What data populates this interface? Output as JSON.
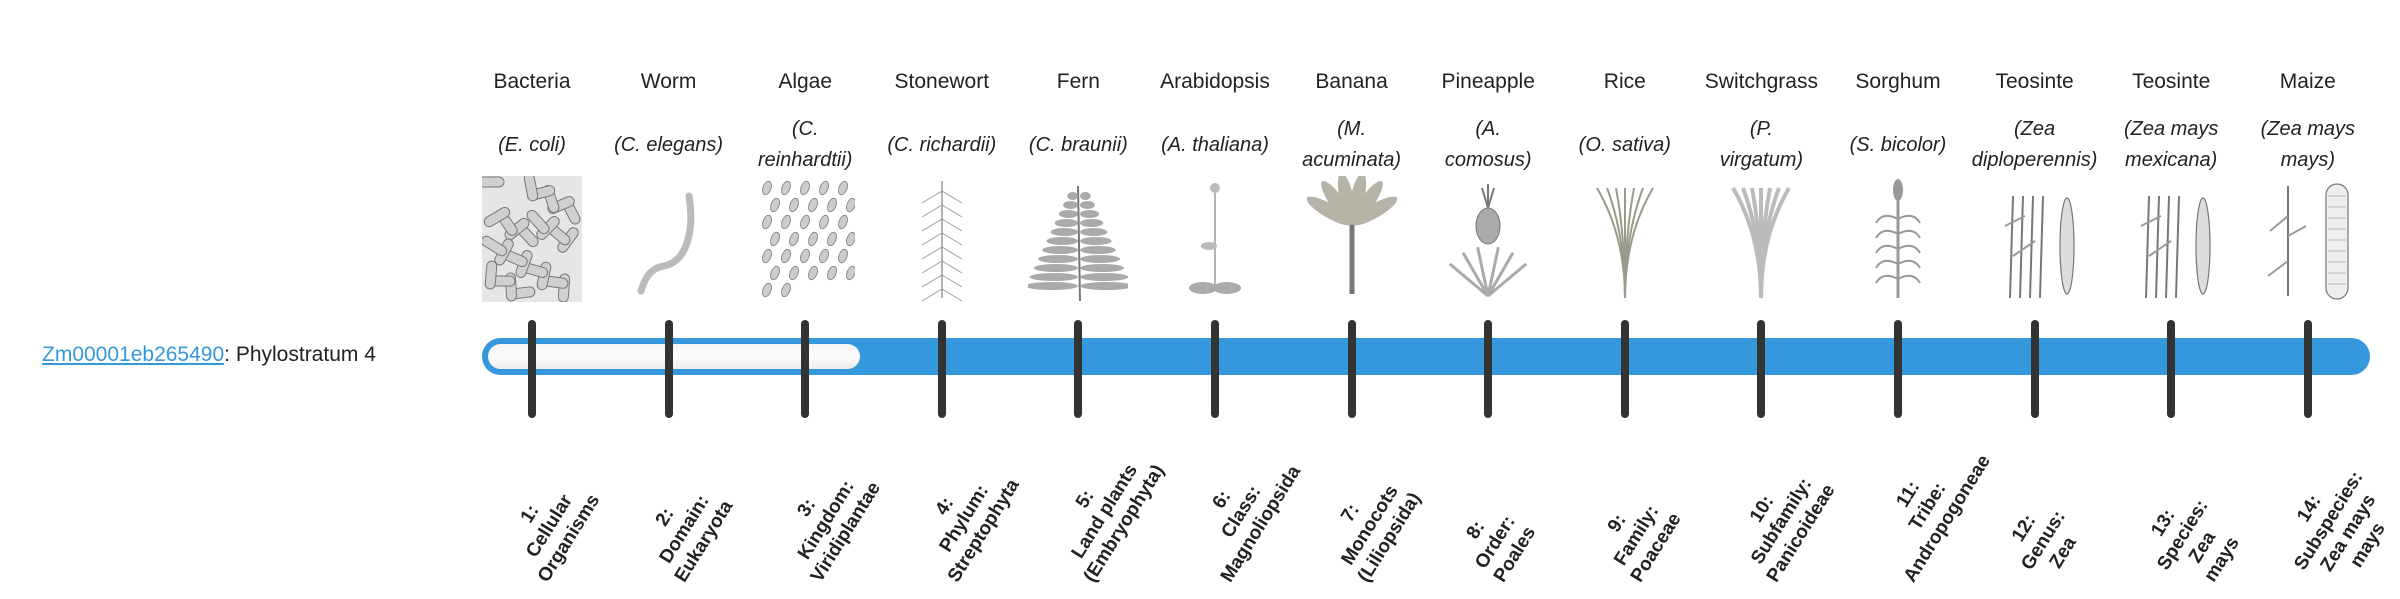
{
  "gene": {
    "id": "Zm00001eb265490",
    "suffix": ": Phylostratum 4",
    "phylostratum": 4
  },
  "bar": {
    "fill_color": "#3598dc",
    "empty_color": "#f5f5f5",
    "total_levels": 14
  },
  "columns": [
    {
      "common": "Bacteria",
      "sci": "(E. coli)",
      "icon": "bacteria-illustration",
      "level": "1:\nCellular\nOrganisms"
    },
    {
      "common": "Worm",
      "sci": "(C. elegans)",
      "icon": "worm-illustration",
      "level": "2:\nDomain:\nEukaryota"
    },
    {
      "common": "Algae",
      "sci": "(C.\nreinhardtii)",
      "icon": "algae-illustration",
      "level": "3:\nKingdom:\nViridiplantae"
    },
    {
      "common": "Stonewort",
      "sci": "(C. richardii)",
      "icon": "stonewort-illustration",
      "level": "4:\nPhylum:\nStreptophyta"
    },
    {
      "common": "Fern",
      "sci": "(C. braunii)",
      "icon": "fern-illustration",
      "level": "5:\nLand plants\n(Embryophyta)"
    },
    {
      "common": "Arabidopsis",
      "sci": "(A. thaliana)",
      "icon": "arabidopsis-illustration",
      "level": "6:\nClass:\nMagnoliopsida"
    },
    {
      "common": "Banana",
      "sci": "(M.\nacuminata)",
      "icon": "banana-illustration",
      "level": "7:\nMonocots\n(Liliopsida)"
    },
    {
      "common": "Pineapple",
      "sci": "(A.\ncomosus)",
      "icon": "pineapple-illustration",
      "level": "8:\nOrder:\nPoales"
    },
    {
      "common": "Rice",
      "sci": "(O. sativa)",
      "icon": "rice-illustration",
      "level": "9:\nFamily:\nPoaceae"
    },
    {
      "common": "Switchgrass",
      "sci": "(P.\nvirgatum)",
      "icon": "switchgrass-illustration",
      "level": "10:\nSubfamily:\nPanicoideae"
    },
    {
      "common": "Sorghum",
      "sci": "(S. bicolor)",
      "icon": "sorghum-illustration",
      "level": "11:\nTribe:\nAndropogoneae"
    },
    {
      "common": "Teosinte",
      "sci": "(Zea\ndiploperennis)",
      "icon": "teosinte-illustration",
      "level": "12:\nGenus:\nZea"
    },
    {
      "common": "Teosinte",
      "sci": "(Zea mays\nmexicana)",
      "icon": "teosinte-illustration",
      "level": "13:\nSpecies:\nZea\nmays"
    },
    {
      "common": "Maize",
      "sci": "(Zea mays\nmays)",
      "icon": "maize-illustration",
      "level": "14:\nSubspecies:\nZea mays\nmays"
    }
  ]
}
